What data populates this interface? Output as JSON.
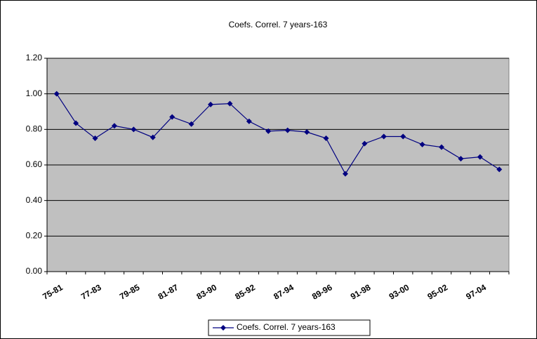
{
  "chart_data": {
    "type": "line",
    "title": "Coefs. Correl. 7 years-163",
    "categories": [
      "75-81",
      null,
      "77-83",
      null,
      "79-85",
      null,
      "81-87",
      null,
      "83-90",
      null,
      "85-92",
      null,
      "87-94",
      null,
      "89-96",
      null,
      "91-98",
      null,
      "93-00",
      null,
      "95-02",
      null,
      "97-04",
      null
    ],
    "series": [
      {
        "name": "Coefs. Correl. 7 years-163",
        "color": "#000080",
        "values": [
          1.0,
          0.835,
          0.75,
          0.82,
          0.8,
          0.755,
          0.87,
          0.83,
          0.94,
          0.945,
          0.845,
          0.79,
          0.795,
          0.785,
          0.75,
          0.55,
          0.72,
          0.76,
          0.76,
          0.715,
          0.7,
          0.635,
          0.645,
          0.575
        ]
      }
    ],
    "ylim": [
      0,
      1.2
    ],
    "yticks": [
      {
        "value": 0,
        "label": "0.00"
      },
      {
        "value": 0.2,
        "label": "0.20"
      },
      {
        "value": 0.4,
        "label": "0.40"
      },
      {
        "value": 0.6,
        "label": "0.60"
      },
      {
        "value": 0.8,
        "label": "0.80"
      },
      {
        "value": 1,
        "label": "1.00"
      },
      {
        "value": 1.2,
        "label": "1.20"
      }
    ],
    "grid": true,
    "legend": "bottom",
    "plot_background": "#c0c0c0"
  }
}
